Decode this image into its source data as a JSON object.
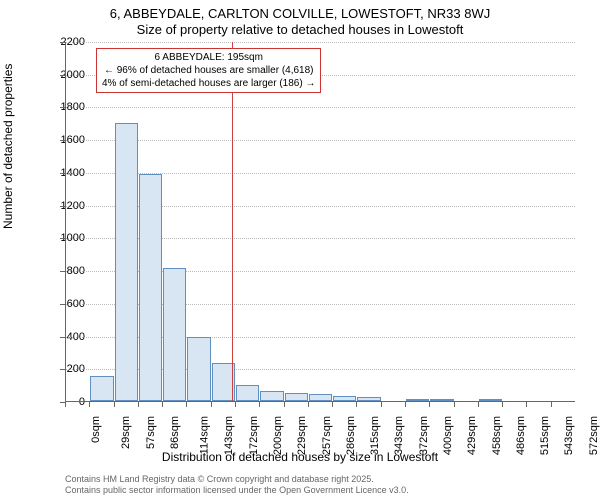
{
  "title_line1": "6, ABBEYDALE, CARLTON COLVILLE, LOWESTOFT, NR33 8WJ",
  "title_line2": "Size of property relative to detached houses in Lowestoft",
  "y_axis_label": "Number of detached properties",
  "x_axis_label": "Distribution of detached houses by size in Lowestoft",
  "histogram": {
    "type": "histogram",
    "ylim": [
      0,
      2200
    ],
    "ytick_step": 200,
    "y_ticks": [
      0,
      200,
      400,
      600,
      800,
      1000,
      1200,
      1400,
      1600,
      1800,
      2000,
      2200
    ],
    "x_tick_labels": [
      "0sqm",
      "29sqm",
      "57sqm",
      "86sqm",
      "114sqm",
      "143sqm",
      "172sqm",
      "200sqm",
      "229sqm",
      "257sqm",
      "286sqm",
      "315sqm",
      "343sqm",
      "372sqm",
      "400sqm",
      "429sqm",
      "458sqm",
      "486sqm",
      "515sqm",
      "543sqm",
      "572sqm"
    ],
    "values": [
      0,
      150,
      1700,
      1390,
      810,
      390,
      230,
      100,
      60,
      50,
      40,
      30,
      25,
      0,
      5,
      5,
      0,
      5,
      0,
      0,
      0
    ],
    "bar_fill": "#d8e6f3",
    "bar_stroke": "#6090c0",
    "background_color": "#ffffff",
    "grid_color": "#bbbbbb"
  },
  "reference": {
    "position_sqm": 195,
    "color": "#d04040"
  },
  "annotation": {
    "line1": "6 ABBEYDALE: 195sqm",
    "line2": "← 96% of detached houses are smaller (4,618)",
    "line3": "4% of semi-detached houses are larger (186) →",
    "border_color": "#cc3333"
  },
  "footer_line1": "Contains HM Land Registry data © Crown copyright and database right 2025.",
  "footer_line2": "Contains public sector information licensed under the Open Government Licence v3.0."
}
